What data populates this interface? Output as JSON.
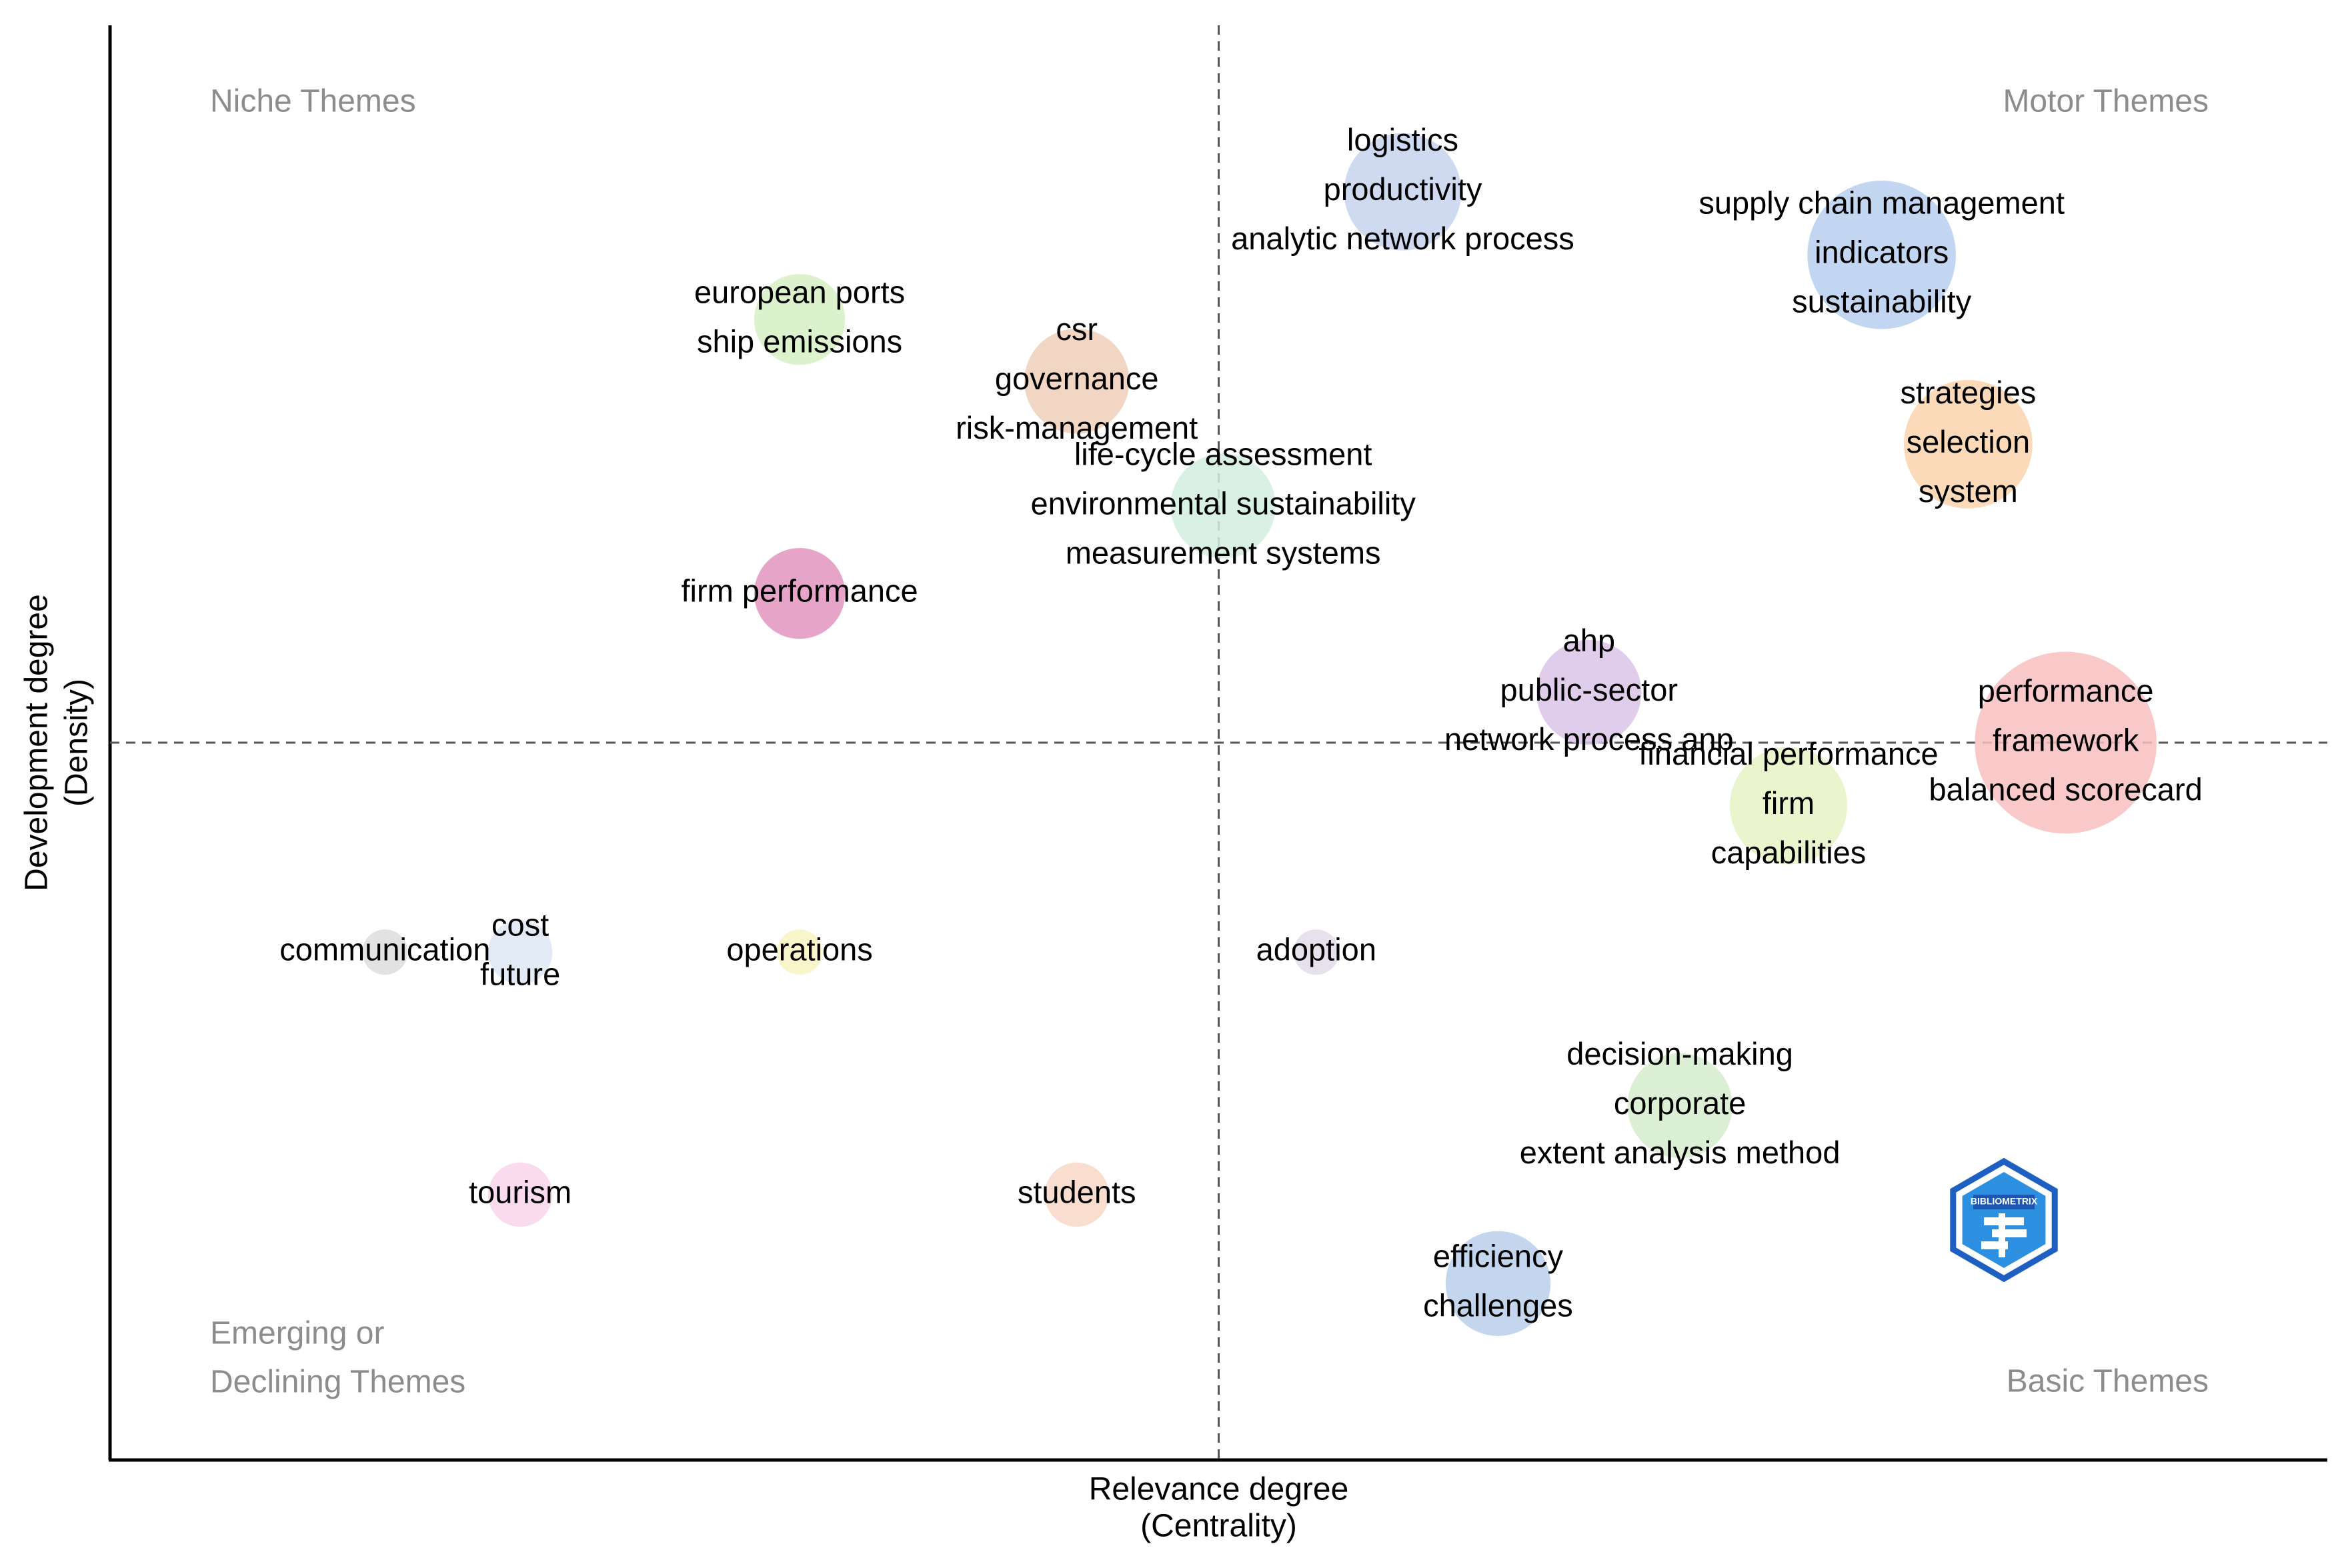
{
  "chart_data": {
    "type": "scatter",
    "title": "",
    "xlabel": [
      "Relevance degree",
      "(Centrality)"
    ],
    "ylabel": [
      "Development degree",
      "(Density)"
    ],
    "xlim": [
      0,
      100
    ],
    "ylim": [
      0,
      100
    ],
    "x_median": 50,
    "y_median": 50,
    "grid": false,
    "quadrants": {
      "top_left": [
        "Niche Themes"
      ],
      "top_right": [
        "Motor Themes"
      ],
      "bottom_left": [
        "Emerging or",
        "Declining Themes"
      ],
      "bottom_right": [
        "Basic Themes"
      ]
    },
    "watermark": "BIBLIOMETRIX",
    "clusters": [
      {
        "labels": [
          "logistics",
          "productivity",
          "analytic network process"
        ],
        "x": 58.3,
        "y": 88.4,
        "size": 1.0,
        "color": "#c7d3ee"
      },
      {
        "labels": [
          "supply chain management",
          "indicators",
          "sustainability"
        ],
        "x": 79.9,
        "y": 84.0,
        "size": 1.6,
        "color": "#b9cfee"
      },
      {
        "labels": [
          "european ports",
          "ship emissions"
        ],
        "x": 31.1,
        "y": 79.5,
        "size": 0.6,
        "color": "#d6f0c3"
      },
      {
        "labels": [
          "csr",
          "governance",
          "risk-management"
        ],
        "x": 43.6,
        "y": 75.2,
        "size": 0.8,
        "color": "#efcfba"
      },
      {
        "labels": [
          "strategies",
          "selection",
          "system"
        ],
        "x": 83.8,
        "y": 70.8,
        "size": 1.2,
        "color": "#fbd4ad"
      },
      {
        "labels": [
          "life-cycle assessment",
          "environmental sustainability",
          "measurement systems"
        ],
        "x": 50.2,
        "y": 66.5,
        "size": 0.8,
        "color": "#d2eee0"
      },
      {
        "labels": [
          "firm performance"
        ],
        "x": 31.1,
        "y": 60.4,
        "size": 0.6,
        "color": "#e394bf"
      },
      {
        "labels": [
          "ahp",
          "public-sector",
          "network process anp"
        ],
        "x": 66.7,
        "y": 53.5,
        "size": 0.8,
        "color": "#dac3e8"
      },
      {
        "labels": [
          "performance",
          "framework",
          "balanced scorecard"
        ],
        "x": 88.2,
        "y": 50.0,
        "size": 2.4,
        "color": "#f8c0c0"
      },
      {
        "labels": [
          "financial performance",
          "firm",
          "capabilities"
        ],
        "x": 75.7,
        "y": 45.6,
        "size": 1.0,
        "color": "#e6f3c6"
      },
      {
        "labels": [
          "communication"
        ],
        "x": 12.4,
        "y": 35.4,
        "size": 0.15,
        "color": "#dddddd"
      },
      {
        "labels": [
          "cost",
          "future"
        ],
        "x": 18.5,
        "y": 35.4,
        "size": 0.3,
        "color": "#dde7f3"
      },
      {
        "labels": [
          "operations"
        ],
        "x": 31.1,
        "y": 35.4,
        "size": 0.15,
        "color": "#f7f3c2"
      },
      {
        "labels": [
          "adoption"
        ],
        "x": 54.4,
        "y": 35.4,
        "size": 0.15,
        "color": "#e3dcea"
      },
      {
        "labels": [
          "decision-making",
          "corporate",
          "extent analysis method"
        ],
        "x": 70.8,
        "y": 24.7,
        "size": 0.8,
        "color": "#d4eccc"
      },
      {
        "labels": [
          "tourism"
        ],
        "x": 18.5,
        "y": 18.5,
        "size": 0.3,
        "color": "#f8d5ea"
      },
      {
        "labels": [
          "students"
        ],
        "x": 43.6,
        "y": 18.5,
        "size": 0.3,
        "color": "#f8d8c8"
      },
      {
        "labels": [
          "efficiency",
          "challenges"
        ],
        "x": 62.6,
        "y": 12.3,
        "size": 0.8,
        "color": "#b9cfea"
      }
    ]
  }
}
